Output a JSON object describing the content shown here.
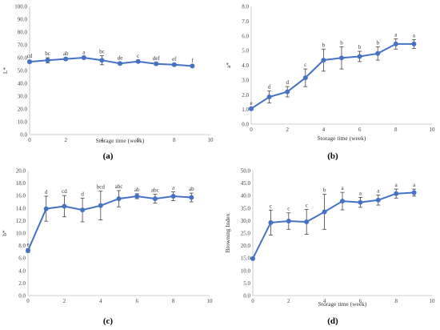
{
  "chart_data": [
    {
      "panel": "(a)",
      "type": "line",
      "xlabel": "Storage time (week)",
      "ylabel": "L*",
      "xlim": [
        0,
        10
      ],
      "ylim": [
        0,
        100
      ],
      "xticks": [
        "0",
        "2",
        "4",
        "6",
        "8",
        "10"
      ],
      "yticks": [
        "0.0",
        "10.0",
        "20.0",
        "30.0",
        "40.0",
        "50.0",
        "60.0",
        "70.0",
        "80.0",
        "90.0",
        "100.0"
      ],
      "x": [
        0,
        1,
        2,
        3,
        4,
        5,
        6,
        7,
        8,
        9
      ],
      "values": [
        56.8,
        58.0,
        59.0,
        60.0,
        58.0,
        55.5,
        57.0,
        55.2,
        54.5,
        53.5
      ],
      "errors": [
        1.2,
        2.0,
        1.0,
        1.0,
        3.5,
        1.0,
        1.0,
        1.0,
        1.0,
        1.0
      ],
      "letters": [
        "cd",
        "bc",
        "ab",
        "a",
        "bc",
        "de",
        "c",
        "def",
        "ef",
        "f"
      ],
      "color": "#4472c4"
    },
    {
      "panel": "(b)",
      "type": "line",
      "xlabel": "Storage time (week)",
      "ylabel": "a*",
      "xlim": [
        0,
        10
      ],
      "ylim": [
        0,
        8
      ],
      "xticks": [
        "0",
        "2",
        "4",
        "6",
        "8",
        "10"
      ],
      "yticks": [
        "0.0",
        "1.0",
        "2.0",
        "3.0",
        "4.0",
        "5.0",
        "6.0",
        "7.0",
        "8.0"
      ],
      "x": [
        0,
        1,
        2,
        3,
        4,
        5,
        6,
        7,
        8,
        9
      ],
      "values": [
        1.05,
        1.85,
        2.2,
        3.15,
        4.35,
        4.5,
        4.6,
        4.8,
        5.45,
        5.45
      ],
      "errors": [
        0.1,
        0.4,
        0.35,
        0.6,
        0.75,
        0.75,
        0.35,
        0.45,
        0.35,
        0.3
      ],
      "letters": [
        "e",
        "d",
        "d",
        "c",
        "b",
        "b",
        "b",
        "b",
        "a",
        "a"
      ],
      "color": "#4472c4"
    },
    {
      "panel": "(c)",
      "type": "line",
      "xlabel": "",
      "ylabel": "b*",
      "xlim": [
        0,
        10
      ],
      "ylim": [
        0,
        20
      ],
      "xticks": [
        "0",
        "2",
        "4",
        "6",
        "8",
        "10"
      ],
      "yticks": [
        "0.0",
        "2.0",
        "4.0",
        "6.0",
        "8.0",
        "10.0",
        "12.0",
        "14.0",
        "16.0",
        "18.0",
        "20.0"
      ],
      "x": [
        0,
        1,
        2,
        3,
        4,
        5,
        6,
        7,
        8,
        9
      ],
      "values": [
        7.2,
        13.9,
        14.3,
        13.7,
        14.4,
        15.5,
        15.9,
        15.5,
        15.9,
        15.7
      ],
      "errors": [
        0.3,
        2.0,
        1.7,
        1.9,
        2.3,
        1.3,
        0.4,
        0.7,
        0.7,
        0.7
      ],
      "letters": [
        "e",
        "d",
        "cd",
        "d",
        "bcd",
        "abc",
        "ab",
        "abc",
        "a",
        "ab"
      ],
      "color": "#4472c4"
    },
    {
      "panel": "(d)",
      "type": "line",
      "xlabel": "Storage time (week)",
      "ylabel": "Browning Index",
      "xlim": [
        0,
        10
      ],
      "ylim": [
        0,
        50
      ],
      "xticks": [
        "0",
        "2",
        "4",
        "6",
        "8",
        "10"
      ],
      "yticks": [
        "0.0",
        "5.0",
        "10.0",
        "15.0",
        "20.0",
        "25.0",
        "30.0",
        "35.0",
        "40.0",
        "45.0",
        "50.0"
      ],
      "x": [
        0,
        1,
        2,
        3,
        4,
        5,
        6,
        7,
        8,
        9
      ],
      "values": [
        14.8,
        29.2,
        29.8,
        29.5,
        33.5,
        37.8,
        37.3,
        38.2,
        40.8,
        41.2
      ],
      "errors": [
        0.5,
        5.0,
        3.3,
        5.0,
        7.0,
        3.5,
        2.0,
        2.0,
        1.8,
        1.4
      ],
      "letters": [
        "",
        "c",
        "c",
        "c",
        "b",
        "a",
        "a",
        "a",
        "a",
        "a"
      ],
      "color": "#4472c4"
    }
  ]
}
